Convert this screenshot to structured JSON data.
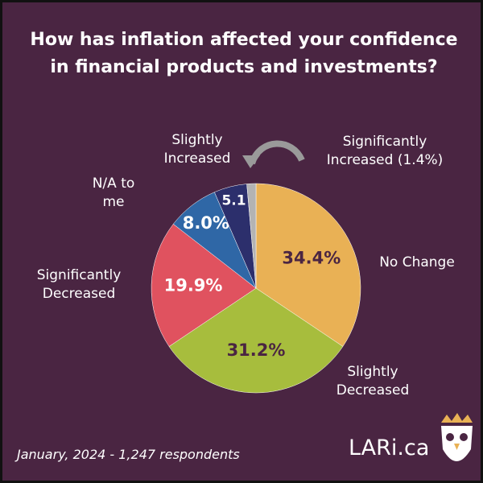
{
  "chart_data": {
    "type": "pie",
    "title": "How has inflation affected your confidence in financial products and investments?",
    "categories": [
      "No Change",
      "Slightly Decreased",
      "Significantly Decreased",
      "N/A to me",
      "Slightly Increased",
      "Significantly Increased (1.4%)"
    ],
    "values": [
      34.4,
      31.2,
      19.9,
      8.0,
      5.1,
      1.4
    ],
    "value_labels": [
      "34.4%",
      "31.2%",
      "19.9%",
      "8.0%",
      "5.1",
      null
    ],
    "colors": [
      "#e9b155",
      "#a7bd3d",
      "#e0525f",
      "#2f67a6",
      "#2c2f6c",
      "#b3b3b3"
    ],
    "value_label_colors": [
      "#4a2542",
      "#4a2542",
      "#ffffff",
      "#ffffff",
      "#ffffff",
      "#ffffff"
    ],
    "footnote": "January, 2024 - 1,247 respondents",
    "brand": "LARi.ca"
  }
}
